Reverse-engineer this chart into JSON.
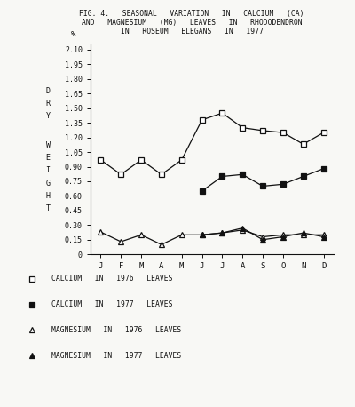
{
  "title_line1": "FIG. 4.   SEASONAL   VARIATION   IN   CALCIUM   (CA)",
  "title_line2": "AND   MAGNESIUM   (MG)   LEAVES   IN   RHODODENDRON",
  "title_line3": "IN   ROSEUM   ELEGANS   IN   1977",
  "months": [
    "J",
    "F",
    "M",
    "A",
    "M",
    "J",
    "J",
    "A",
    "S",
    "O",
    "N",
    "D"
  ],
  "ca_1976": [
    0.97,
    0.82,
    0.97,
    0.82,
    0.97,
    1.38,
    1.45,
    1.3,
    1.27,
    1.25,
    1.13,
    1.25
  ],
  "ca_1977": [
    null,
    null,
    null,
    null,
    null,
    0.65,
    0.8,
    0.82,
    0.7,
    0.72,
    0.8,
    0.88
  ],
  "mg_1976": [
    0.23,
    0.13,
    0.2,
    0.1,
    0.2,
    0.2,
    0.22,
    0.25,
    0.18,
    0.2,
    0.2,
    0.2
  ],
  "mg_1977": [
    null,
    null,
    null,
    null,
    null,
    0.2,
    0.22,
    0.27,
    0.15,
    0.18,
    0.22,
    0.18
  ],
  "ylabel_letters": [
    "D",
    "R",
    "Y",
    "",
    "W",
    "E",
    "I",
    "G",
    "H",
    "T"
  ],
  "yticks": [
    0,
    0.15,
    0.3,
    0.45,
    0.6,
    0.75,
    0.9,
    1.05,
    1.2,
    1.35,
    1.5,
    1.65,
    1.8,
    1.95,
    2.1
  ],
  "ylim": [
    0,
    2.15
  ],
  "bg_color": "#f8f8f5",
  "line_color": "#111111",
  "legend_markers": [
    "square_open",
    "square_filled",
    "triangle_open",
    "triangle_filled"
  ],
  "legend_labels": [
    "CALCIUM   IN   1976   LEAVES",
    "CALCIUM   IN   1977   LEAVES",
    "MAGNESIUM   IN   1976   LEAVES",
    "MAGNESIUM   IN   1977   LEAVES"
  ]
}
